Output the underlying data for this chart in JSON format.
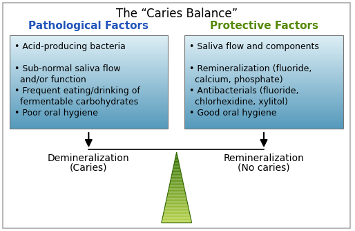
{
  "title": "The “Caries Balance”",
  "left_header": "Pathological Factors",
  "right_header": "Protective Factors",
  "left_items": [
    "Acid-producing bacteria",
    "Sub-normal saliva flow\n  and/or function",
    "Frequent eating/drinking of\n  fermentable carbohydrates",
    "Poor oral hygiene"
  ],
  "right_items": [
    "Saliva flow and components",
    "Remineralization (fluoride,\n  calcium, phosphate)",
    "Antibacterials (fluoride,\n  chlorhexidine, xylitol)",
    "Good oral hygiene"
  ],
  "left_label_line1": "Demineralization",
  "left_label_line2": "(Caries)",
  "right_label_line1": "Remineralization",
  "right_label_line2": "(No caries)",
  "left_header_color": "#2255bb",
  "right_header_color": "#558800",
  "box_top_color": "#5599bb",
  "box_bottom_color": "#ddeef5",
  "title_fontsize": 12,
  "header_fontsize": 11,
  "item_fontsize": 9,
  "label_fontsize": 10,
  "bg_color": "#ffffff",
  "border_color": "#aaaaaa",
  "tri_top_color": "#2d6e00",
  "tri_bot_color": "#b8d44a"
}
